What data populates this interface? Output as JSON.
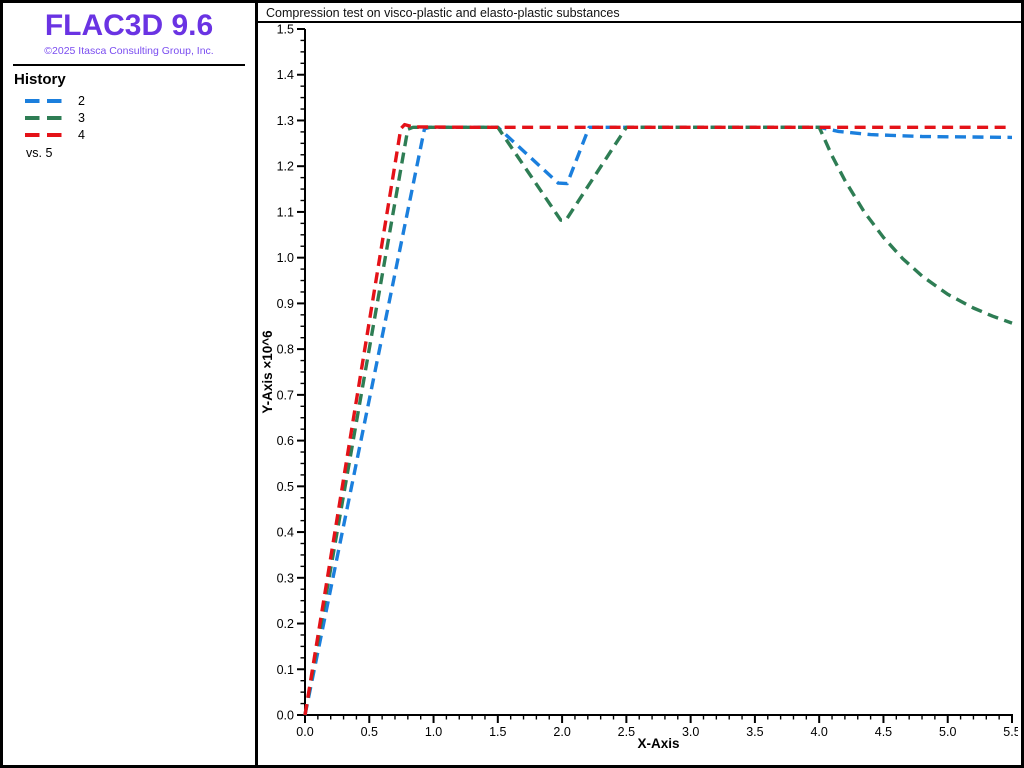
{
  "window": {
    "app_title": "FLAC3D 9.6"
  },
  "sidebar": {
    "logo": "FLAC3D 9.6",
    "logo_color": "#6a33e3",
    "copyright": "©2025 Itasca Consulting Group, Inc.",
    "copyright_color": "#7a4cf0",
    "legend": {
      "title": "History",
      "items": [
        {
          "label": "2",
          "color": "#1b7fdd"
        },
        {
          "label": "3",
          "color": "#2e7d54"
        },
        {
          "label": "4",
          "color": "#e41218"
        }
      ],
      "vs_label": "vs. 5"
    }
  },
  "chart": {
    "title": "Compression test on visco-plastic and elasto-plastic substances"
  },
  "chart_data": {
    "type": "line",
    "title": "Compression test on visco-plastic and elasto-plastic substances",
    "xlabel": "X-Axis",
    "ylabel": "Y-Axis ×10^6",
    "xlim": [
      0,
      5.5
    ],
    "ylim": [
      0,
      1.5
    ],
    "grid": false,
    "legend_position": "left-panel",
    "line_style": "dashed",
    "x_major_tick_step": 0.5,
    "x_minor_tick_step": 0.1,
    "y_major_tick_step": 0.1,
    "y_minor_tick_step": 0.025,
    "x_tick_labels": [
      "0.0",
      "0.5",
      "1.0",
      "1.5",
      "2.0",
      "2.5",
      "3.0",
      "3.5",
      "4.0",
      "4.5",
      "5.0",
      "5.5"
    ],
    "y_tick_labels": [
      "0.0",
      "0.1",
      "0.2",
      "0.3",
      "0.4",
      "0.5",
      "0.6",
      "0.7",
      "0.8",
      "0.9",
      "1.0",
      "1.1",
      "1.2",
      "1.3",
      "1.4",
      "1.5"
    ],
    "series": [
      {
        "name": "2",
        "color": "#1b7fdd",
        "points": [
          [
            0,
            0
          ],
          [
            0.93,
            1.282
          ],
          [
            0.97,
            1.285
          ],
          [
            1.5,
            1.285
          ],
          [
            1.97,
            1.163
          ],
          [
            2.04,
            1.162
          ],
          [
            2.21,
            1.285
          ],
          [
            4.0,
            1.285
          ],
          [
            4.15,
            1.276
          ],
          [
            4.4,
            1.269
          ],
          [
            4.8,
            1.265
          ],
          [
            5.5,
            1.263
          ]
        ]
      },
      {
        "name": "3",
        "color": "#2e7d54",
        "points": [
          [
            0,
            0
          ],
          [
            0.8,
            1.281
          ],
          [
            0.84,
            1.285
          ],
          [
            1.5,
            1.285
          ],
          [
            1.99,
            1.082
          ],
          [
            2.03,
            1.082
          ],
          [
            2.5,
            1.285
          ],
          [
            4.0,
            1.285
          ],
          [
            4.1,
            1.223
          ],
          [
            4.2,
            1.169
          ],
          [
            4.35,
            1.1
          ],
          [
            4.5,
            1.044
          ],
          [
            4.65,
            0.998
          ],
          [
            4.8,
            0.96
          ],
          [
            5.0,
            0.92
          ],
          [
            5.2,
            0.89
          ],
          [
            5.35,
            0.872
          ],
          [
            5.5,
            0.857
          ]
        ]
      },
      {
        "name": "4",
        "color": "#e41218",
        "points": [
          [
            0,
            0
          ],
          [
            0.745,
            1.282
          ],
          [
            0.775,
            1.291
          ],
          [
            0.84,
            1.286
          ],
          [
            1.3,
            1.285
          ],
          [
            5.5,
            1.285
          ]
        ]
      }
    ]
  }
}
